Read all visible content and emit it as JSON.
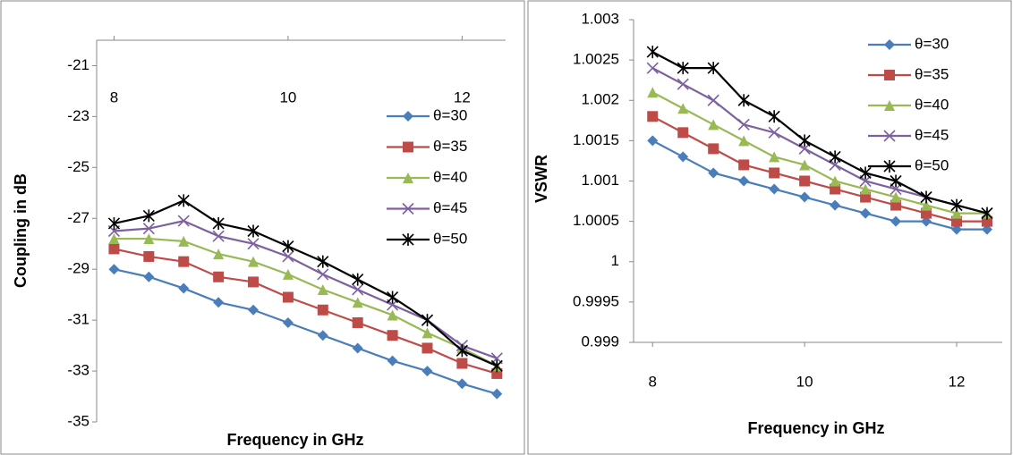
{
  "chart_data": [
    {
      "type": "line",
      "ylabel": "Coupling in dB",
      "xlabel": "Frequency in GHz",
      "x": [
        8,
        8.4,
        8.8,
        9.2,
        9.6,
        10,
        10.4,
        10.8,
        11.2,
        11.6,
        12,
        12.4
      ],
      "xlim": [
        7.8,
        12.5
      ],
      "xticks": [
        8,
        10,
        12
      ],
      "ylim": [
        -35,
        -20
      ],
      "yticks": [
        -35,
        -33,
        -31,
        -29,
        -27,
        -25,
        -23,
        -21
      ],
      "series": [
        {
          "name": "θ=30",
          "color": "#4a7ebb",
          "values": [
            -29.0,
            -29.3,
            -29.75,
            -30.3,
            -30.6,
            -31.1,
            -31.6,
            -32.1,
            -32.6,
            -33.0,
            -33.5,
            -33.9
          ]
        },
        {
          "name": "θ=35",
          "color": "#be4b48",
          "values": [
            -28.2,
            -28.5,
            -28.7,
            -29.3,
            -29.5,
            -30.1,
            -30.6,
            -31.1,
            -31.6,
            -32.1,
            -32.7,
            -33.1
          ]
        },
        {
          "name": "θ=40",
          "color": "#98b954",
          "values": [
            -27.8,
            -27.8,
            -27.9,
            -28.4,
            -28.7,
            -29.2,
            -29.8,
            -30.3,
            -30.8,
            -31.5,
            -32.1,
            -32.8
          ]
        },
        {
          "name": "θ=45",
          "color": "#7d60a0",
          "values": [
            -27.5,
            -27.4,
            -27.1,
            -27.7,
            -28.0,
            -28.5,
            -29.2,
            -29.8,
            -30.4,
            -31.0,
            -32.0,
            -32.5
          ]
        },
        {
          "name": "θ=50",
          "color": "#000000",
          "values": [
            -27.2,
            -26.9,
            -26.3,
            -27.2,
            -27.5,
            -28.1,
            -28.7,
            -29.4,
            -30.1,
            -31.0,
            -32.2,
            -32.8
          ]
        }
      ]
    },
    {
      "type": "line",
      "ylabel": "VSWR",
      "xlabel": "Frequency in GHz",
      "x": [
        8,
        8.4,
        8.8,
        9.2,
        9.6,
        10,
        10.4,
        10.8,
        11.2,
        11.6,
        12,
        12.4
      ],
      "xlim": [
        7.75,
        12.6
      ],
      "xticks": [
        8,
        10,
        12
      ],
      "ylim": [
        0.999,
        1.003
      ],
      "yticks": [
        0.999,
        0.9995,
        1,
        1.0005,
        1.001,
        1.0015,
        1.002,
        1.0025,
        1.003
      ],
      "series": [
        {
          "name": "θ=30",
          "color": "#4a7ebb",
          "values": [
            1.0015,
            1.0013,
            1.0011,
            1.001,
            1.0009,
            1.0008,
            1.0007,
            1.0006,
            1.0005,
            1.0005,
            1.0004,
            1.0004
          ]
        },
        {
          "name": "θ=35",
          "color": "#be4b48",
          "values": [
            1.0018,
            1.0016,
            1.0014,
            1.0012,
            1.0011,
            1.001,
            1.0009,
            1.0008,
            1.0007,
            1.0006,
            1.0005,
            1.0005
          ]
        },
        {
          "name": "θ=40",
          "color": "#98b954",
          "values": [
            1.0021,
            1.0019,
            1.0017,
            1.0015,
            1.0013,
            1.0012,
            1.001,
            1.0009,
            1.0008,
            1.0007,
            1.0006,
            1.0006
          ]
        },
        {
          "name": "θ=45",
          "color": "#7d60a0",
          "values": [
            1.0024,
            1.0022,
            1.002,
            1.0017,
            1.0016,
            1.0014,
            1.0012,
            1.001,
            1.0009,
            1.0008,
            1.0007,
            1.0006
          ]
        },
        {
          "name": "θ=50",
          "color": "#000000",
          "values": [
            1.0026,
            1.0024,
            1.0024,
            1.002,
            1.0018,
            1.0015,
            1.0013,
            1.0011,
            1.001,
            1.0008,
            1.0007,
            1.0006
          ]
        }
      ]
    }
  ]
}
